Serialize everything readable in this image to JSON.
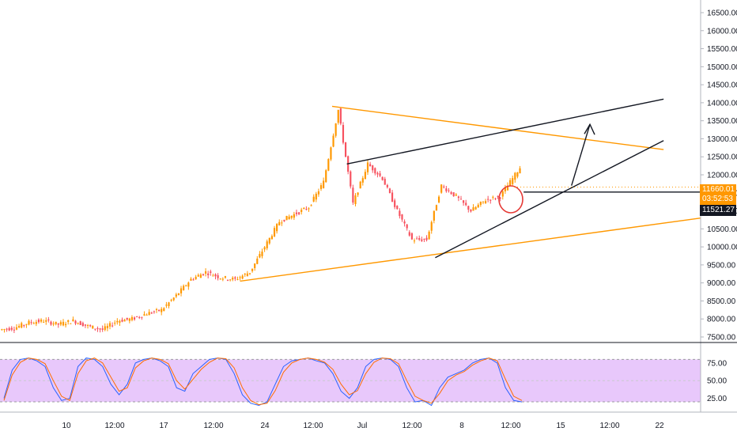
{
  "chart_data": [
    {
      "type": "candlestick",
      "title": "",
      "xlabel": "",
      "ylabel": "",
      "y_ticks": [
        "16500.00",
        "16000.00",
        "15500.00",
        "15000.00",
        "14500.00",
        "14000.00",
        "13500.00",
        "13000.00",
        "12500.00",
        "12000.00",
        "11500.00",
        "11000.00",
        "10500.00",
        "10000.00",
        "9500.00",
        "9000.00",
        "8500.00",
        "8000.00",
        "7500.00"
      ],
      "x_ticks": [
        "10",
        "12:00",
        "17",
        "12:00",
        "24",
        "12:00",
        "Jul",
        "12:00",
        "8",
        "12:00",
        "15",
        "12:00",
        "22"
      ],
      "ylim": [
        7450,
        16800
      ],
      "grid": false,
      "colors": {
        "up": "#ff9800",
        "down": "#f7525f",
        "wick": "#f7525f",
        "orange_line": "#ff9800",
        "black_line": "#131722",
        "circle": "#e53935"
      },
      "close_path": [
        [
          "06-03",
          7700
        ],
        [
          "06-04",
          7750
        ],
        [
          "06-05",
          7900
        ],
        [
          "06-06",
          7950
        ],
        [
          "06-07",
          7850
        ],
        [
          "06-08",
          7950
        ],
        [
          "06-09",
          7800
        ],
        [
          "06-10",
          7700
        ],
        [
          "06-11",
          7950
        ],
        [
          "06-12",
          8000
        ],
        [
          "06-13",
          8150
        ],
        [
          "06-14",
          8250
        ],
        [
          "06-15",
          8650
        ],
        [
          "06-16",
          9100
        ],
        [
          "06-17",
          9300
        ],
        [
          "06-18",
          9150
        ],
        [
          "06-19",
          9100
        ],
        [
          "06-20",
          9300
        ],
        [
          "06-21",
          10000
        ],
        [
          "06-22",
          10700
        ],
        [
          "06-23",
          10900
        ],
        [
          "06-24",
          11100
        ],
        [
          "06-25",
          11800
        ],
        [
          "06-26",
          13800
        ],
        [
          "06-27",
          11200
        ],
        [
          "06-28",
          12300
        ],
        [
          "06-29",
          11900
        ],
        [
          "06-30",
          11000
        ],
        [
          "07-01",
          10200
        ],
        [
          "07-02",
          10200
        ],
        [
          "07-03",
          11700
        ],
        [
          "07-04",
          11400
        ],
        [
          "07-05",
          11000
        ],
        [
          "07-06",
          11300
        ],
        [
          "07-07",
          11400
        ],
        [
          "07-08",
          12000
        ],
        [
          "07-09",
          12600
        ],
        [
          "07-10",
          13100
        ],
        [
          "07-11",
          12200
        ],
        [
          "07-12",
          11660
        ]
      ],
      "annotations": [
        {
          "name": "orange-resistance",
          "color": "#ff9800",
          "from": [
            "06-25T12",
            13900
          ],
          "to": [
            "07-18",
            12700
          ]
        },
        {
          "name": "orange-support",
          "color": "#ff9800",
          "from": [
            "06-19T06",
            9050
          ],
          "to": [
            "07-26",
            10800
          ]
        },
        {
          "name": "black-upper-channel",
          "color": "#131722",
          "from": [
            "06-26T12",
            12300
          ],
          "to": [
            "07-18",
            14100
          ]
        },
        {
          "name": "black-lower-channel",
          "color": "#131722",
          "from": [
            "07-02T12",
            9700
          ],
          "to": [
            "07-18",
            12950
          ]
        },
        {
          "name": "horizontal-level",
          "color": "#131722",
          "from": [
            "07-08T12",
            11521.27
          ],
          "to": [
            "07-26",
            11521.27
          ]
        },
        {
          "name": "projection-arrow-1",
          "color": "#131722",
          "from": [
            "07-11T18",
            11700
          ],
          "to": [
            "07-13",
            13400
          ]
        }
      ],
      "last_price": {
        "value": "11660.01",
        "countdown": "03:52:53"
      },
      "line_price": "11521.27"
    },
    {
      "type": "line",
      "title": "",
      "y_ticks": [
        "75.00",
        "50.00",
        "25.00"
      ],
      "ylim": [
        10,
        95
      ],
      "band": [
        20,
        80
      ],
      "band_color": "#e8c8fb",
      "series": [
        {
          "color": "#2962ff",
          "values": [
            25,
            65,
            80,
            82,
            78,
            70,
            40,
            22,
            25,
            70,
            82,
            80,
            70,
            45,
            30,
            45,
            75,
            80,
            82,
            78,
            70,
            40,
            35,
            60,
            70,
            80,
            82,
            80,
            60,
            30,
            18,
            15,
            20,
            45,
            70,
            78,
            80,
            82,
            78,
            75,
            60,
            35,
            25,
            40,
            70,
            80,
            82,
            80,
            70,
            40,
            20,
            22,
            15,
            40,
            55,
            60,
            65,
            75,
            80,
            82,
            75,
            40,
            22,
            20
          ]
        },
        {
          "color": "#ff6d00",
          "values": [
            22,
            58,
            76,
            82,
            80,
            74,
            50,
            28,
            22,
            60,
            78,
            82,
            75,
            55,
            35,
            40,
            68,
            78,
            82,
            80,
            74,
            50,
            38,
            52,
            66,
            76,
            82,
            81,
            68,
            40,
            22,
            16,
            18,
            36,
            62,
            75,
            80,
            82,
            80,
            76,
            66,
            45,
            30,
            36,
            60,
            76,
            82,
            81,
            74,
            50,
            28,
            22,
            18,
            32,
            50,
            58,
            63,
            72,
            78,
            82,
            78,
            52,
            28,
            22
          ]
        }
      ]
    }
  ]
}
